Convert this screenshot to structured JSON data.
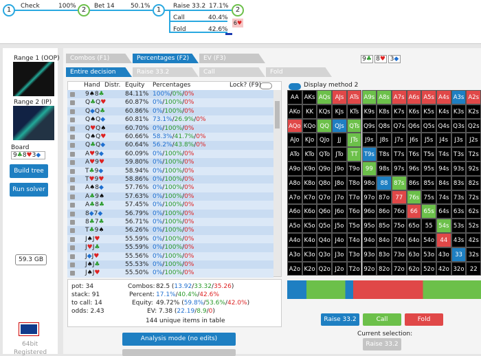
{
  "tree": {
    "nodes": [
      "1",
      "2",
      "1",
      "2"
    ],
    "actions": [
      {
        "name": "Check",
        "pct": "100%"
      },
      {
        "name": "Bet 14",
        "pct": "50.1%"
      },
      {
        "name": "Raise 33.2",
        "pct": "17.1%"
      },
      {
        "name": "Call",
        "pct": "40.4%"
      },
      {
        "name": "Fold",
        "pct": "42.6%"
      }
    ],
    "card": "6♥"
  },
  "sidebar": {
    "range1": "Range 1 (OOP)",
    "range2": "Range 2 (IP)",
    "board_label": "Board",
    "board": "9♣8♥3◆",
    "build": "Build tree",
    "run": "Run solver",
    "memory": "59.3 GB",
    "bits": "64bit",
    "registered": "Registered"
  },
  "tabs": [
    "Combos (F1)",
    "Percentages (F2)",
    "EV (F3)"
  ],
  "subtabs": [
    "Entire decision",
    "Raise 33.2",
    "Call",
    "Fold"
  ],
  "board_cards": [
    "9♣",
    "8♥",
    "3◆"
  ],
  "table": {
    "headers": [
      "Hand",
      "Distr.",
      "Equity",
      "Percentages"
    ],
    "lock": "Lock? (F9)",
    "rows": [
      [
        "9♠8♣",
        "84.11%",
        "100%/0%/0%"
      ],
      [
        "Q♣Q♥",
        "60.87%",
        "0%/100%/0%"
      ],
      [
        "Q◆Q♣",
        "60.86%",
        "0%/100%/0%"
      ],
      [
        "Q♠Q◆",
        "60.81%",
        "73.1%/26.9%/0%"
      ],
      [
        "Q♥Q♠",
        "60.70%",
        "0%/100%/0%"
      ],
      [
        "Q♠Q♥",
        "60.66%",
        "58.3%/41.7%/0%"
      ],
      [
        "Q♣Q◆",
        "60.64%",
        "56.2%/43.8%/0%"
      ],
      [
        "A♥9◆",
        "60.09%",
        "0%/100%/0%"
      ],
      [
        "A♥9♥",
        "59.80%",
        "0%/100%/0%"
      ],
      [
        "T♣9◆",
        "58.94%",
        "0%/100%/0%"
      ],
      [
        "T♥9♥",
        "58.86%",
        "0%/100%/0%"
      ],
      [
        "A♠8◆",
        "57.76%",
        "0%/100%/0%"
      ],
      [
        "A♣9♠",
        "57.63%",
        "0%/100%/0%"
      ],
      [
        "A♣8♣",
        "57.45%",
        "0%/100%/0%"
      ],
      [
        "8◆7◆",
        "56.79%",
        "0%/100%/0%"
      ],
      [
        "8♣7♣",
        "56.71%",
        "0%/100%/0%"
      ],
      [
        "T♣9♠",
        "56.26%",
        "0%/100%/0%"
      ],
      [
        "J♠J♥",
        "55.59%",
        "0%/100%/0%"
      ],
      [
        "J♥J♣",
        "55.59%",
        "0%/100%/0%"
      ],
      [
        "J◆J♥",
        "55.56%",
        "0%/100%/0%"
      ],
      [
        "J♠J♣",
        "55.53%",
        "0%/100%/0%"
      ],
      [
        "J♠J♥",
        "55.50%",
        "0%/100%/0%"
      ]
    ]
  },
  "stats": {
    "left": [
      "pot: 34",
      "stack: 91",
      "to call: 14",
      "odds: 2.43"
    ],
    "right": [
      [
        "Combos:",
        "82.5 (13.92/33.32/35.26)"
      ],
      [
        "Percent:",
        "17.1%/40.4%/42.6%"
      ],
      [
        "Equity:",
        "49.72% (59.8%/53.6%/42.0%)"
      ],
      [
        "EV:",
        "7.38 (22.19/8.9/0)"
      ]
    ],
    "count": "144 unique items in table"
  },
  "display_method": "Display method 2",
  "grid": {
    "labels": [
      [
        "AA",
        "AKs",
        "AQs",
        "AJs",
        "ATs",
        "A9s",
        "A8s",
        "A7s",
        "A6s",
        "A5s",
        "A4s",
        "A3s",
        "A2s"
      ],
      [
        "AKo",
        "KK",
        "KQs",
        "KJs",
        "KTs",
        "K9s",
        "K8s",
        "K7s",
        "K6s",
        "K5s",
        "K4s",
        "K3s",
        "K2s"
      ],
      [
        "AQo",
        "KQo",
        "QQ",
        "QJs",
        "QTs",
        "Q9s",
        "Q8s",
        "Q7s",
        "Q6s",
        "Q5s",
        "Q4s",
        "Q3s",
        "Q2s"
      ],
      [
        "AJo",
        "KJo",
        "QJo",
        "JJ",
        "JTs",
        "J9s",
        "J8s",
        "J7s",
        "J6s",
        "J5s",
        "J4s",
        "J3s",
        "J2s"
      ],
      [
        "ATo",
        "KTo",
        "QTo",
        "JTo",
        "TT",
        "T9s",
        "T8s",
        "T7s",
        "T6s",
        "T5s",
        "T4s",
        "T3s",
        "T2s"
      ],
      [
        "A9o",
        "K9o",
        "Q9o",
        "J9o",
        "T9o",
        "99",
        "98s",
        "97s",
        "96s",
        "95s",
        "94s",
        "93s",
        "92s"
      ],
      [
        "A8o",
        "K8o",
        "Q8o",
        "J8o",
        "T8o",
        "98o",
        "88",
        "87s",
        "86s",
        "85s",
        "84s",
        "83s",
        "82s"
      ],
      [
        "A7o",
        "K7o",
        "Q7o",
        "J7o",
        "T7o",
        "97o",
        "87o",
        "77",
        "76s",
        "75s",
        "74s",
        "73s",
        "72s"
      ],
      [
        "A6o",
        "K6o",
        "Q6o",
        "J6o",
        "T6o",
        "96o",
        "86o",
        "76o",
        "66",
        "65s",
        "64s",
        "63s",
        "62s"
      ],
      [
        "A5o",
        "K5o",
        "Q5o",
        "J5o",
        "T5o",
        "95o",
        "85o",
        "75o",
        "65o",
        "55",
        "54s",
        "53s",
        "52s"
      ],
      [
        "A4o",
        "K4o",
        "Q4o",
        "J4o",
        "T4o",
        "94o",
        "84o",
        "74o",
        "64o",
        "54o",
        "44",
        "43s",
        "42s"
      ],
      [
        "A3o",
        "K3o",
        "Q3o",
        "J3o",
        "T3o",
        "93o",
        "83o",
        "73o",
        "63o",
        "53o",
        "43o",
        "33",
        "32s"
      ],
      [
        "A2o",
        "K2o",
        "Q2o",
        "J2o",
        "T2o",
        "92o",
        "82o",
        "72o",
        "62o",
        "52o",
        "42o",
        "32o",
        "22"
      ]
    ],
    "colors": [
      "kkgrrggrrrrbr",
      "kkkkkkkkkkkkk",
      "rkgbgkkkkkkkk",
      "kkkkgkkkkkkkk",
      "kkkkgbkkkkkkk",
      "kkkkkgkkkkkkk",
      "kkkkkkbgkkkkk",
      "kkkkkkkrgkkkk",
      "kkkkkkkkrgkkk",
      "kkkkkkkkkkgkk",
      "kkkkkkkkkkrkk",
      "kkkkkkkkkkkbk",
      "kkkkkkkkkkkkk"
    ],
    "palette": {
      "k": "#000000",
      "g": "#6cc04a",
      "r": "#e04848",
      "b": "#1e7fc2"
    }
  },
  "actions": [
    {
      "name": "Raise 33.2",
      "color": "#1e7fc2"
    },
    {
      "name": "Call",
      "color": "#6cc04a"
    },
    {
      "name": "Fold",
      "color": "#e04848"
    }
  ],
  "current_label": "Current selection:",
  "current": "Raise 33.2",
  "analysis": "Analysis mode (no edits)"
}
